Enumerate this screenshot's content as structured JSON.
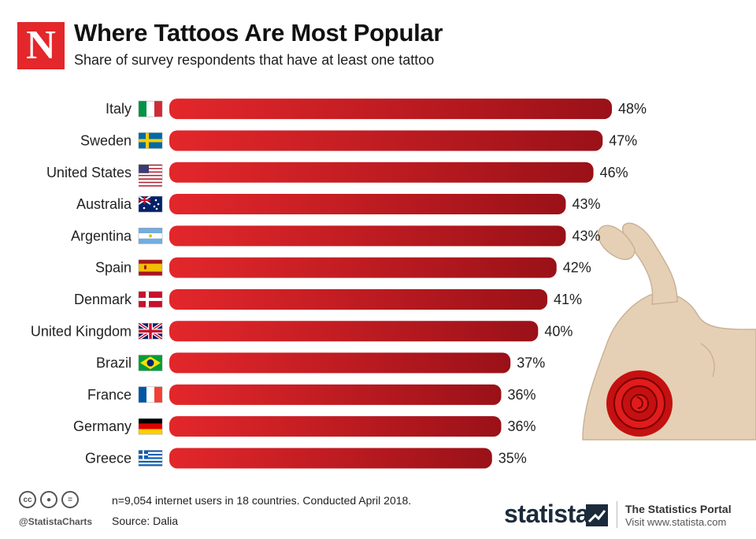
{
  "logo_letter": "N",
  "header": {
    "title": "Where Tattoos Are Most Popular",
    "subtitle": "Share of survey respondents that have at least one tattoo"
  },
  "chart_data": {
    "type": "bar",
    "orientation": "horizontal",
    "title": "Where Tattoos Are Most Popular",
    "subtitle": "Share of survey respondents that have at least one tattoo",
    "categories": [
      "Italy",
      "Sweden",
      "United States",
      "Australia",
      "Argentina",
      "Spain",
      "Denmark",
      "United Kingdom",
      "Brazil",
      "France",
      "Germany",
      "Greece"
    ],
    "values": [
      48,
      47,
      46,
      43,
      43,
      42,
      41,
      40,
      37,
      36,
      36,
      35
    ],
    "value_suffix": "%",
    "flags": [
      "flag-italy-icon",
      "flag-sweden-icon",
      "flag-usa-icon",
      "flag-australia-icon",
      "flag-argentina-icon",
      "flag-spain-icon",
      "flag-denmark-icon",
      "flag-uk-icon",
      "flag-brazil-icon",
      "flag-france-icon",
      "flag-germany-icon",
      "flag-greece-icon"
    ],
    "xlim": [
      0,
      48
    ],
    "grid": false,
    "legend": "none",
    "bar_color": "#e3272b",
    "bar_color_dark": "#9a1118"
  },
  "illustration": "flexed-arm-with-rose-tattoo",
  "footer": {
    "note": "n=9,054 internet users in 18 countries. Conducted April 2018.",
    "source": "Source: Dalia",
    "handle": "@StatistaCharts",
    "license_icons": [
      "cc",
      "by",
      "nd"
    ],
    "brand": "statista",
    "portal_title": "The Statistics Portal",
    "portal_url": "Visit www.statista.com"
  },
  "colors": {
    "accent": "#e3272b",
    "brand_dark": "#1b2b3c",
    "skin": "#e6d0b5"
  }
}
